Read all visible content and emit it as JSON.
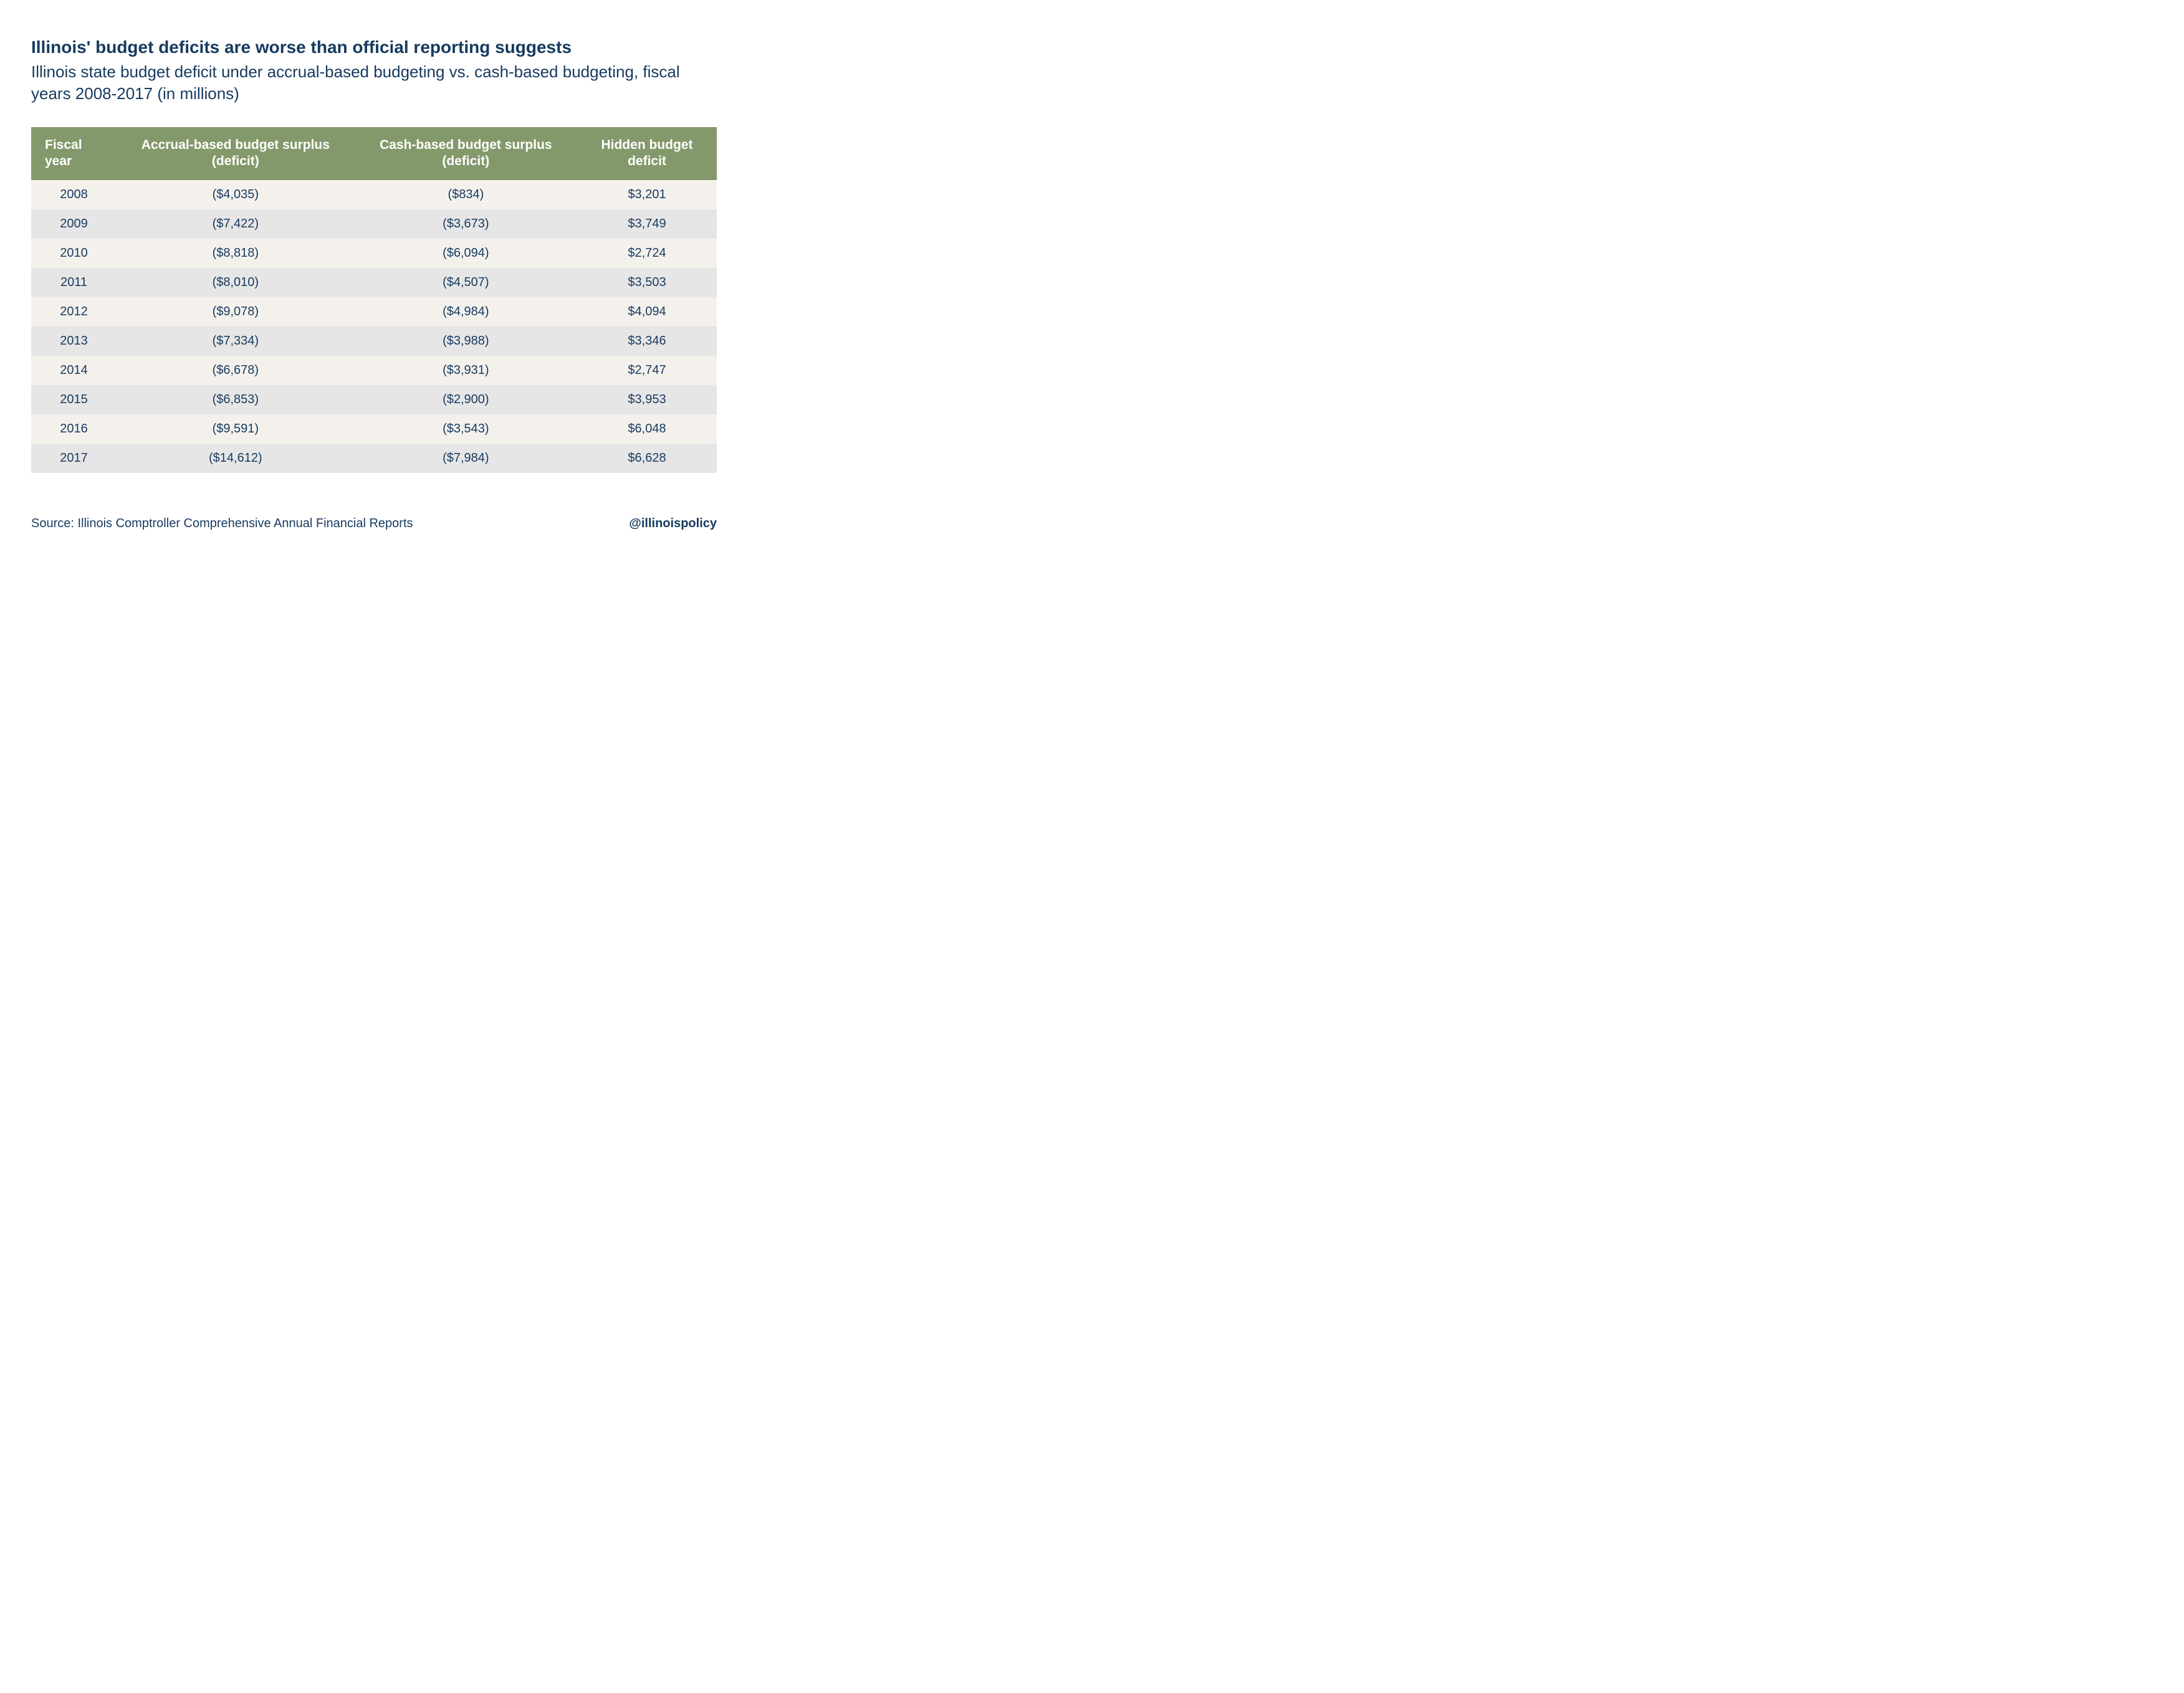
{
  "header": {
    "title": "Illinois' budget deficits are worse than official reporting suggests",
    "subtitle": "Illinois state budget deficit under accrual-based budgeting vs. cash-based budgeting, fiscal years 2008-2017 (in millions)"
  },
  "table": {
    "type": "table",
    "header_bg": "#84996b",
    "header_text_color": "#ffffff",
    "row_odd_bg": "#f4f1ed",
    "row_even_bg": "#e7e6e6",
    "cell_text_color": "#163a5f",
    "header_fontsize": 21,
    "cell_fontsize": 20,
    "columns": [
      "Fiscal year",
      "Accrual-based budget surplus (deficit)",
      "Cash-based budget surplus (deficit)",
      "Hidden budget deficit"
    ],
    "rows": [
      [
        "2008",
        "($4,035)",
        "($834)",
        "$3,201"
      ],
      [
        "2009",
        "($7,422)",
        "($3,673)",
        "$3,749"
      ],
      [
        "2010",
        "($8,818)",
        "($6,094)",
        "$2,724"
      ],
      [
        "2011",
        "($8,010)",
        "($4,507)",
        "$3,503"
      ],
      [
        "2012",
        "($9,078)",
        "($4,984)",
        "$4,094"
      ],
      [
        "2013",
        "($7,334)",
        "($3,988)",
        "$3,346"
      ],
      [
        "2014",
        "($6,678)",
        "($3,931)",
        "$2,747"
      ],
      [
        "2015",
        "($6,853)",
        "($2,900)",
        "$3,953"
      ],
      [
        "2016",
        "($9,591)",
        "($3,543)",
        "$6,048"
      ],
      [
        "2017",
        "($14,612)",
        "($7,984)",
        "$6,628"
      ]
    ]
  },
  "footer": {
    "source": "Source: Illinois Comptroller Comprehensive Annual Financial Reports",
    "handle": "@illinoispolicy"
  },
  "colors": {
    "title_color": "#163a5f",
    "background": "#ffffff"
  }
}
